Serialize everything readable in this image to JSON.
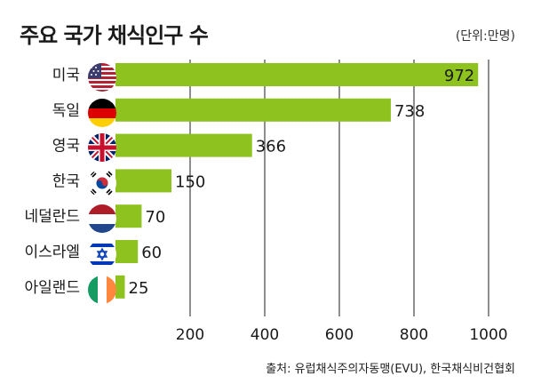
{
  "chart_data": {
    "type": "bar",
    "orientation": "horizontal",
    "title": "주요 국가 채식인구 수",
    "unit": "(단위:만명)",
    "source": "출처: 유럽채식주의자동맹(EVU), 한국채식비건협회",
    "categories": [
      "미국",
      "독일",
      "영국",
      "한국",
      "네덜란드",
      "이스라엘",
      "아일랜드"
    ],
    "flags": [
      "us-flag-icon",
      "germany-flag-icon",
      "uk-flag-icon",
      "korea-flag-icon",
      "netherlands-flag-icon",
      "israel-flag-icon",
      "ireland-flag-icon"
    ],
    "values": [
      972,
      738,
      366,
      150,
      70,
      60,
      25
    ],
    "value_labels": [
      "972",
      "738",
      "366",
      "150",
      "70",
      "60",
      "25"
    ],
    "xlim": [
      0,
      1000
    ],
    "xticks": [
      200,
      400,
      600,
      800,
      1000
    ],
    "xtick_labels": [
      "200",
      "400",
      "600",
      "800",
      "1000"
    ],
    "grid": true,
    "bar_color": "#8dc21f",
    "grid_color": "#444444"
  }
}
